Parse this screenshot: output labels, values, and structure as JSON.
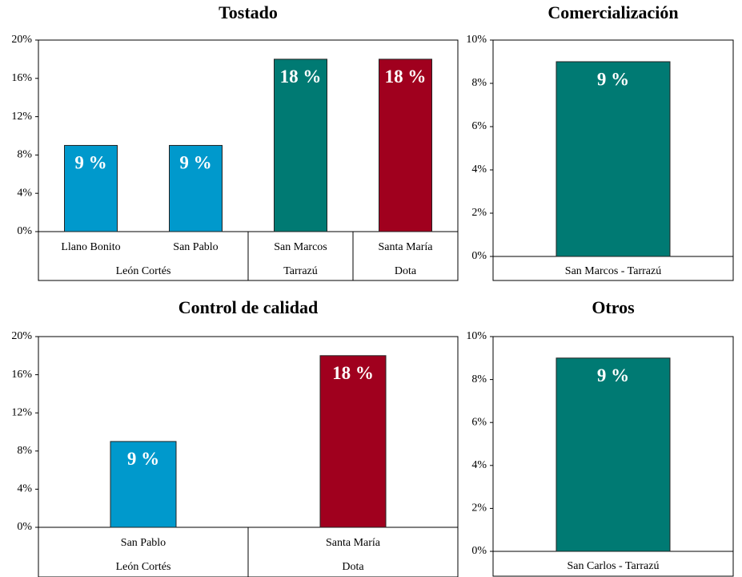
{
  "chart_data": [
    {
      "type": "bar",
      "title": "Tostado",
      "categories": [
        "Llano Bonito",
        "San Pablo",
        "San Marcos",
        "Santa María"
      ],
      "groups": [
        {
          "name": "León Cortés",
          "size": 2
        },
        {
          "name": "Tarrazú",
          "size": 1
        },
        {
          "name": "Dota",
          "size": 1
        }
      ],
      "values": [
        9,
        9,
        18,
        18
      ],
      "value_labels": [
        "9 %",
        "9 %",
        "18 %",
        "18 %"
      ],
      "colors": [
        "#0099cc",
        "#0099cc",
        "#007a73",
        "#a0001e"
      ],
      "ylim": [
        0,
        20
      ],
      "yticks": [
        {
          "value": 0,
          "label": "0%"
        },
        {
          "value": 4,
          "label": "4%"
        },
        {
          "value": 8,
          "label": "8%"
        },
        {
          "value": 12,
          "label": "12%"
        },
        {
          "value": 16,
          "label": "16%"
        },
        {
          "value": 20,
          "label": "20%"
        }
      ]
    },
    {
      "type": "bar",
      "title": "Comercialización",
      "categories": [
        "San Marcos - Tarrazú"
      ],
      "values": [
        9
      ],
      "value_labels": [
        "9 %"
      ],
      "colors": [
        "#007a73"
      ],
      "ylim": [
        0,
        10
      ],
      "yticks": [
        {
          "value": 0,
          "label": "0%"
        },
        {
          "value": 2,
          "label": "2%"
        },
        {
          "value": 4,
          "label": "4%"
        },
        {
          "value": 6,
          "label": "6%"
        },
        {
          "value": 8,
          "label": "8%"
        },
        {
          "value": 10,
          "label": "10%"
        }
      ]
    },
    {
      "type": "bar",
      "title": "Control de calidad",
      "categories": [
        "San Pablo",
        "Santa María"
      ],
      "groups": [
        {
          "name": "León Cortés",
          "size": 1
        },
        {
          "name": "Dota",
          "size": 1
        }
      ],
      "values": [
        9,
        18
      ],
      "value_labels": [
        "9 %",
        "18 %"
      ],
      "colors": [
        "#0099cc",
        "#a0001e"
      ],
      "ylim": [
        0,
        20
      ],
      "yticks": [
        {
          "value": 0,
          "label": "0%"
        },
        {
          "value": 4,
          "label": "4%"
        },
        {
          "value": 8,
          "label": "8%"
        },
        {
          "value": 12,
          "label": "12%"
        },
        {
          "value": 16,
          "label": "16%"
        },
        {
          "value": 20,
          "label": "20%"
        }
      ]
    },
    {
      "type": "bar",
      "title": "Otros",
      "categories": [
        "San Carlos - Tarrazú"
      ],
      "values": [
        9
      ],
      "value_labels": [
        "9 %"
      ],
      "colors": [
        "#007a73"
      ],
      "ylim": [
        0,
        10
      ],
      "yticks": [
        {
          "value": 0,
          "label": "0%"
        },
        {
          "value": 2,
          "label": "2%"
        },
        {
          "value": 4,
          "label": "4%"
        },
        {
          "value": 6,
          "label": "6%"
        },
        {
          "value": 8,
          "label": "8%"
        },
        {
          "value": 10,
          "label": "10%"
        }
      ]
    }
  ]
}
